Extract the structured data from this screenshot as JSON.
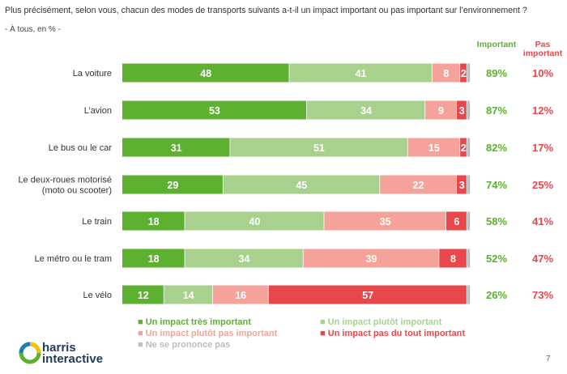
{
  "page": {
    "page_number": "7",
    "brand_line1": "harris",
    "brand_line2": "interactive"
  },
  "colors": {
    "very_important": "#5db030",
    "rather_important": "#a9d18e",
    "rather_not_important": "#f4a29a",
    "not_at_all_important": "#e8484c",
    "no_opinion": "#bdbdbd"
  },
  "chart_data": {
    "type": "bar",
    "orientation": "horizontal",
    "stacked": true,
    "title": "Plus précisément, selon vous, chacun des modes de transports suivants a-t-il un impact important ou pas important sur l’environnement ?",
    "subtitle": "- À tous, en % -",
    "xlim": [
      0,
      100
    ],
    "categories": [
      [
        "La voiture"
      ],
      [
        "L’avion"
      ],
      [
        "Le bus ou le car"
      ],
      [
        "Le deux-roues motorisé",
        "(moto ou scooter)"
      ],
      [
        "Le train"
      ],
      [
        "Le métro ou le tram"
      ],
      [
        "Le vélo"
      ]
    ],
    "series": [
      {
        "name": "Un impact très important",
        "values": [
          48,
          53,
          31,
          29,
          18,
          18,
          12
        ]
      },
      {
        "name": "Un impact plutôt important",
        "values": [
          41,
          34,
          51,
          45,
          40,
          34,
          14
        ]
      },
      {
        "name": "Un impact plutôt pas important",
        "values": [
          8,
          9,
          15,
          22,
          35,
          39,
          16
        ]
      },
      {
        "name": "Un impact pas du tout important",
        "values": [
          2,
          3,
          2,
          3,
          6,
          8,
          57
        ]
      },
      {
        "name": "Ne se prononce pas",
        "values": [
          1,
          1,
          1,
          1,
          1,
          1,
          1
        ]
      }
    ],
    "totals": {
      "important_header": "Important",
      "not_important_header": [
        "Pas",
        "important"
      ],
      "important": [
        "89%",
        "87%",
        "82%",
        "74%",
        "58%",
        "52%",
        "26%"
      ],
      "not_important": [
        "10%",
        "12%",
        "17%",
        "25%",
        "41%",
        "47%",
        "73%"
      ]
    },
    "legend": [
      "Un impact très important",
      "Un impact plutôt important",
      "Un impact plutôt pas important",
      "Un impact pas du tout important",
      "Ne se prononce pas"
    ]
  }
}
